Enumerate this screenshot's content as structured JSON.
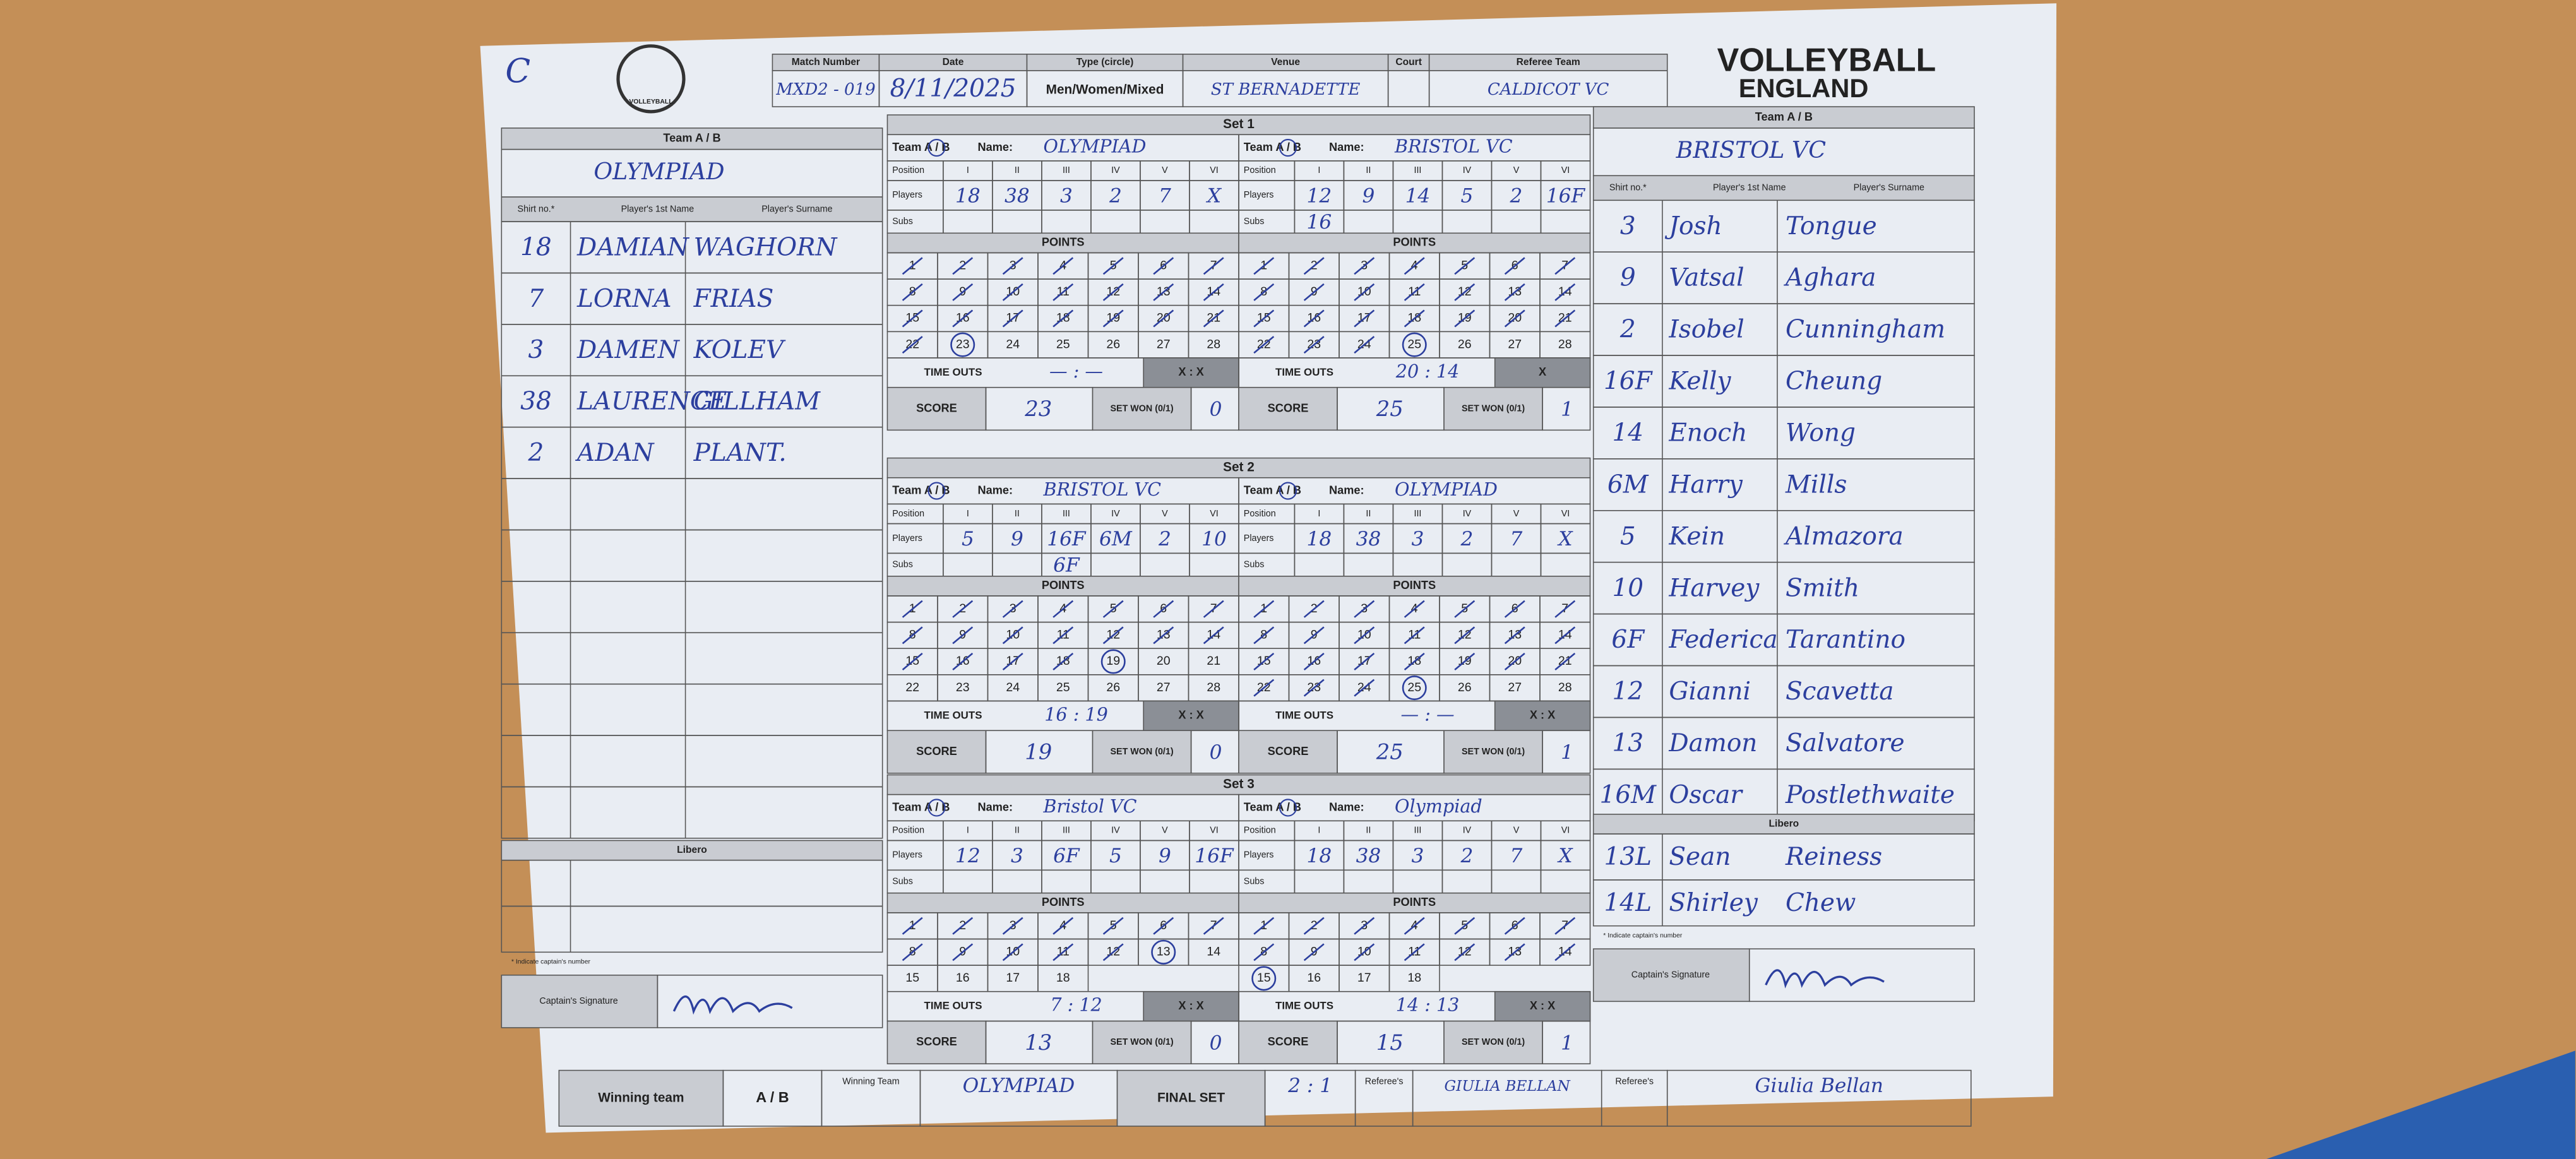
{
  "header": {
    "corner_mark": "C",
    "logo_left": "VOLLEYBALL",
    "logo_right_1": "VOLLEYBALL",
    "logo_right_2": "ENGLAND",
    "match_number_label": "Match Number",
    "match_number": "MXD2 - 019",
    "date_label": "Date",
    "date": "8/11/2025",
    "type_label": "Type (circle)",
    "type": "Men/Women/Mixed",
    "venue_label": "Venue",
    "venue": "ST BERNADETTE",
    "court_label": "Court",
    "referee_team_label": "Referee Team",
    "referee_team": "CALDICOT VC"
  },
  "teams": [
    {
      "heading": "Team A / B",
      "name": "OLYMPIAD",
      "columns": [
        "Shirt no.*",
        "Player's 1st Name",
        "Player's Surname"
      ],
      "players": [
        [
          "18",
          "DAMIAN",
          "WAGHORN"
        ],
        [
          "7",
          "LORNA",
          "FRIAS"
        ],
        [
          "3",
          "DAMEN",
          "KOLEV"
        ],
        [
          "38",
          "LAURENCE",
          "GILLHAM"
        ],
        [
          "2",
          "ADAN",
          "PLANT."
        ]
      ],
      "libero_heading": "Libero",
      "libero": [],
      "captain_note": "* Indicate captain's number",
      "captain_label": "Captain's Signature"
    },
    {
      "heading": "Team A / B",
      "name": "BRISTOL VC",
      "columns": [
        "Shirt no.*",
        "Player's 1st Name",
        "Player's Surname"
      ],
      "players": [
        [
          "3",
          "Josh",
          "Tongue"
        ],
        [
          "9",
          "Vatsal",
          "Aghara"
        ],
        [
          "2",
          "Isobel",
          "Cunningham"
        ],
        [
          "16F",
          "Kelly",
          "Cheung"
        ],
        [
          "14",
          "Enoch",
          "Wong"
        ],
        [
          "6M",
          "Harry",
          "Mills"
        ],
        [
          "5",
          "Kein",
          "Almazora"
        ],
        [
          "10",
          "Harvey",
          "Smith"
        ],
        [
          "6F",
          "Federica",
          "Tarantino"
        ],
        [
          "12",
          "Gianni",
          "Scavetta"
        ],
        [
          "13",
          "Damon",
          "Salvatore"
        ],
        [
          "16M",
          "Oscar",
          "Postlethwaite"
        ]
      ],
      "libero_heading": "Libero",
      "libero": [
        [
          "13L",
          "Sean",
          "Reiness"
        ],
        [
          "14L",
          "Shirley",
          "Chew"
        ]
      ],
      "captain_note": "* Indicate captain's number",
      "captain_label": "Captain's Signature"
    }
  ],
  "sets": [
    {
      "title": "Set 1",
      "points": [
        1,
        2,
        3,
        4,
        5,
        6,
        7,
        8,
        9,
        10,
        11,
        12,
        13,
        14,
        15,
        16,
        17,
        18,
        19,
        20,
        21,
        22,
        23,
        24,
        25,
        26,
        27,
        28
      ],
      "sides": [
        {
          "team_label": "Team A / B",
          "name_label": "Name:",
          "name": "OLYMPIAD",
          "position_label": "Position",
          "positions": [
            "I",
            "II",
            "III",
            "IV",
            "V",
            "VI"
          ],
          "players_label": "Players",
          "players": [
            "18",
            "38",
            "3",
            "2",
            "7",
            "X"
          ],
          "subs_label": "Subs",
          "subs": [
            null,
            null,
            null,
            null,
            null,
            null
          ],
          "points_label": "POINTS",
          "timeouts_label": "TIME OUTS",
          "timeouts": "— : —",
          "blocked": "X : X",
          "score_label": "SCORE",
          "score": 23,
          "set_won_label": "SET WON (0/1)",
          "set_won": 0
        },
        {
          "team_label": "Team A / B",
          "name_label": "Name:",
          "name": "BRISTOL VC",
          "position_label": "Position",
          "positions": [
            "I",
            "II",
            "III",
            "IV",
            "V",
            "VI"
          ],
          "players_label": "Players",
          "players": [
            "12",
            "9",
            "14",
            "5",
            "2",
            "16F"
          ],
          "subs_label": "Subs",
          "subs": [
            "16",
            null,
            null,
            null,
            null,
            null
          ],
          "points_label": "POINTS",
          "timeouts_label": "TIME OUTS",
          "timeouts": "20 : 14",
          "blocked": "X",
          "score_label": "SCORE",
          "score": 25,
          "set_won_label": "SET WON (0/1)",
          "set_won": 1
        }
      ]
    },
    {
      "title": "Set 2",
      "points": [
        1,
        2,
        3,
        4,
        5,
        6,
        7,
        8,
        9,
        10,
        11,
        12,
        13,
        14,
        15,
        16,
        17,
        18,
        19,
        20,
        21,
        22,
        23,
        24,
        25,
        26,
        27,
        28
      ],
      "sides": [
        {
          "team_label": "Team A / B",
          "name_label": "Name:",
          "name": "BRISTOL VC",
          "position_label": "Position",
          "positions": [
            "I",
            "II",
            "III",
            "IV",
            "V",
            "VI"
          ],
          "players_label": "Players",
          "players": [
            "5",
            "9",
            "16F",
            "6M",
            "2",
            "10"
          ],
          "subs_label": "Subs",
          "subs": [
            null,
            null,
            "6F",
            null,
            null,
            null
          ],
          "points_label": "POINTS",
          "timeouts_label": "TIME OUTS",
          "timeouts": "16 : 19",
          "blocked": "X : X",
          "score_label": "SCORE",
          "score": 19,
          "set_won_label": "SET WON (0/1)",
          "set_won": 0
        },
        {
          "team_label": "Team A / B",
          "name_label": "Name:",
          "name": "OLYMPIAD",
          "position_label": "Position",
          "positions": [
            "I",
            "II",
            "III",
            "IV",
            "V",
            "VI"
          ],
          "players_label": "Players",
          "players": [
            "18",
            "38",
            "3",
            "2",
            "7",
            "X"
          ],
          "subs_label": "Subs",
          "subs": [
            null,
            null,
            null,
            null,
            null,
            null
          ],
          "points_label": "POINTS",
          "timeouts_label": "TIME OUTS",
          "timeouts": "— : —",
          "blocked": "X : X",
          "score_label": "SCORE",
          "score": 25,
          "set_won_label": "SET WON (0/1)",
          "set_won": 1
        }
      ]
    },
    {
      "title": "Set 3",
      "points": [
        1,
        2,
        3,
        4,
        5,
        6,
        7,
        8,
        9,
        10,
        11,
        12,
        13,
        14,
        15,
        16,
        17,
        18
      ],
      "sides": [
        {
          "team_label": "Team A / B",
          "name_label": "Name:",
          "name": "Bristol VC",
          "position_label": "Position",
          "positions": [
            "I",
            "II",
            "III",
            "IV",
            "V",
            "VI"
          ],
          "players_label": "Players",
          "players": [
            "12",
            "3",
            "6F",
            "5",
            "9",
            "16F"
          ],
          "subs_label": "Subs",
          "subs": [
            null,
            null,
            null,
            null,
            null,
            null
          ],
          "points_label": "POINTS",
          "timeouts_label": "TIME OUTS",
          "timeouts": "7 : 12",
          "blocked": "X : X",
          "score_label": "SCORE",
          "score": 13,
          "set_won_label": "SET WON (0/1)",
          "set_won": 0
        },
        {
          "team_label": "Team A / B",
          "name_label": "Name:",
          "name": "Olympiad",
          "position_label": "Position",
          "positions": [
            "I",
            "II",
            "III",
            "IV",
            "V",
            "VI"
          ],
          "players_label": "Players",
          "players": [
            "18",
            "38",
            "3",
            "2",
            "7",
            "X"
          ],
          "subs_label": "Subs",
          "subs": [
            null,
            null,
            null,
            null,
            null,
            null
          ],
          "points_label": "POINTS",
          "timeouts_label": "TIME OUTS",
          "timeouts": "14 : 13",
          "blocked": "X : X",
          "score_label": "SCORE",
          "score": 15,
          "set_won_label": "SET WON (0/1)",
          "set_won": 1
        }
      ]
    }
  ],
  "footer": {
    "winning_team_label": "Winning team",
    "ab": "A / B",
    "winning_team_label_2": "Winning Team",
    "winning_team": "OLYMPIAD",
    "final_set_label": "FINAL SET",
    "final_set": "2 : 1",
    "referee_label_1": "Referee's",
    "referee_name": "GIULIA BELLAN",
    "referee_label_2": "Referee's",
    "referee_signature": "Giulia Bellan"
  }
}
